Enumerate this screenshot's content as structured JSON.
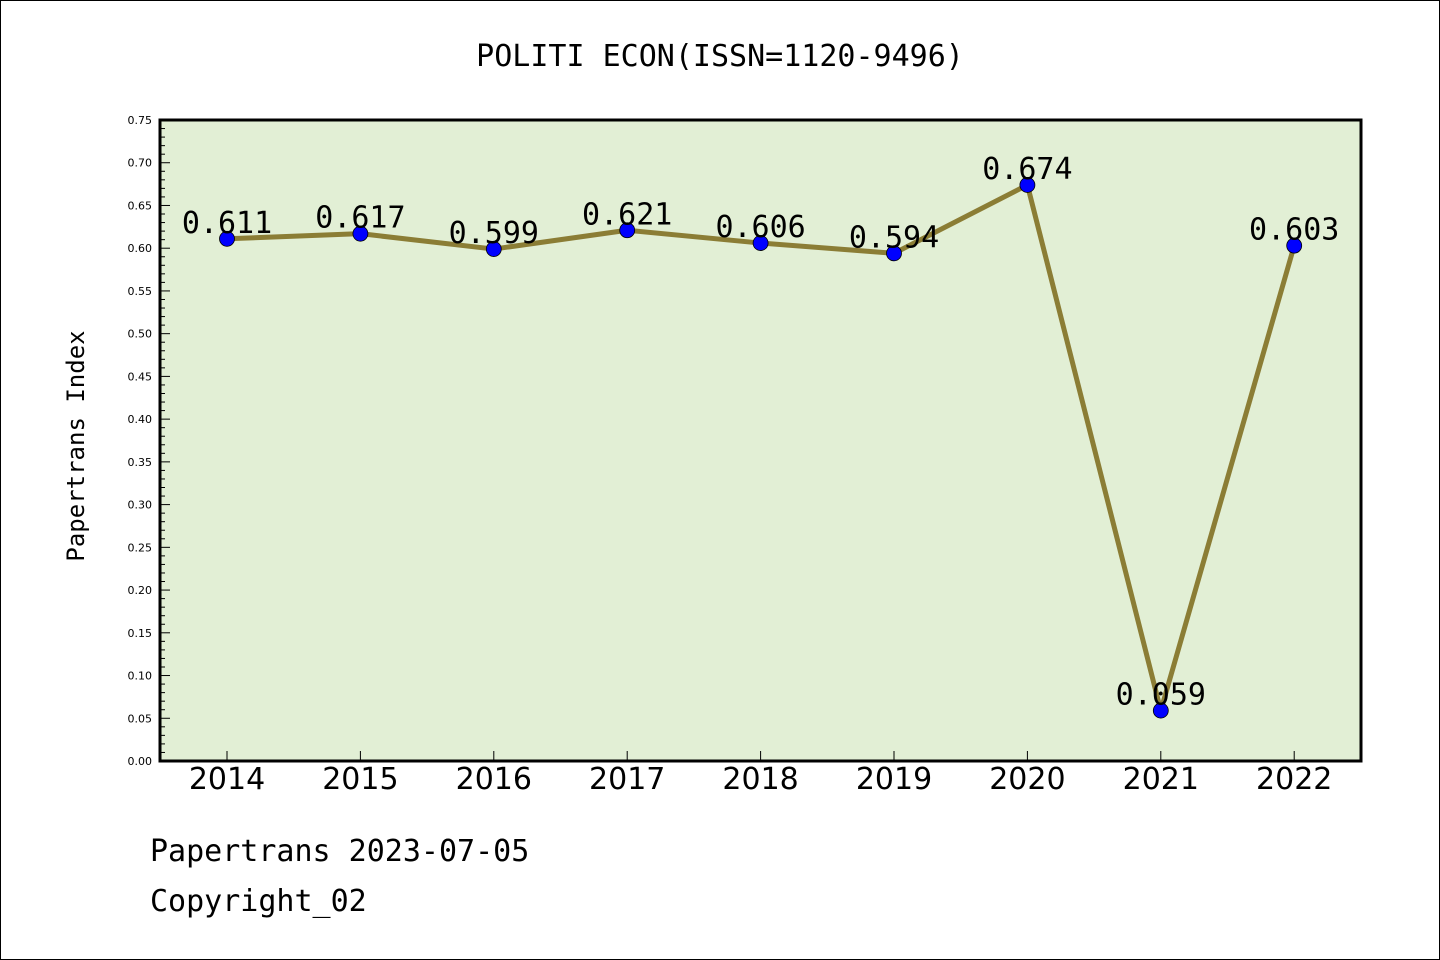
{
  "colors": {
    "plot_bg": "#e2efd5",
    "line": "#8b7d35",
    "marker": "#0000ff"
  },
  "chart_data": {
    "type": "line",
    "title": "POLITI ECON(ISSN=1120-9496)",
    "xlabel": "",
    "ylabel": "Papertrans Index",
    "categories": [
      "2014",
      "2015",
      "2016",
      "2017",
      "2018",
      "2019",
      "2020",
      "2021",
      "2022"
    ],
    "series": [
      {
        "values": [
          0.611,
          0.617,
          0.599,
          0.621,
          0.606,
          0.594,
          0.674,
          0.059,
          0.603
        ],
        "data_labels": [
          "0.611",
          "0.617",
          "0.599",
          "0.621",
          "0.606",
          "0.594",
          "0.674",
          "0.059",
          "0.603"
        ]
      }
    ],
    "ylim": [
      0,
      0.75
    ],
    "yticks": [
      "0.00",
      "0.05",
      "0.10",
      "0.15",
      "0.20",
      "0.25",
      "0.30",
      "0.35",
      "0.40",
      "0.45",
      "0.50",
      "0.55",
      "0.60",
      "0.65",
      "0.70",
      "0.75"
    ],
    "grid": false,
    "legend": "none"
  },
  "footer": {
    "line1": "Papertrans 2023-07-05",
    "line2": "Copyright_02"
  }
}
